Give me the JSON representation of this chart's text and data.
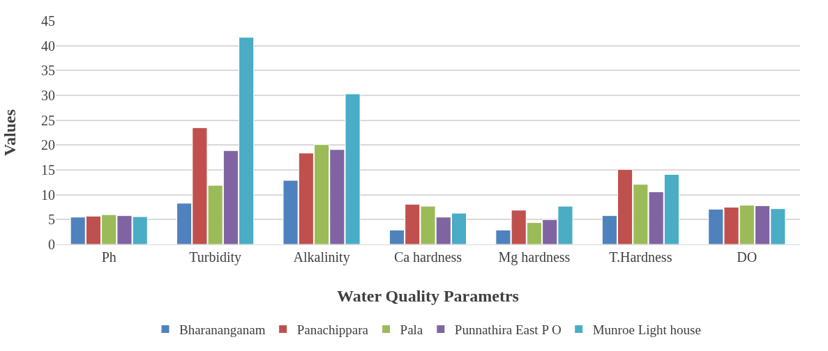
{
  "chart_data": {
    "type": "bar",
    "xlabel": "Water Quality Parametrs",
    "ylabel": "Values",
    "categories": [
      "Ph",
      "Turbidity",
      "Alkalinity",
      "Ca hardness",
      "Mg hardness",
      "T.Hardness",
      "DO"
    ],
    "series": [
      {
        "name": "Bharananganam",
        "color": "#4f81bd",
        "values": [
          5.5,
          8.3,
          12.9,
          2.9,
          2.9,
          5.8,
          7.1
        ]
      },
      {
        "name": "Panachippara",
        "color": "#c0504d",
        "values": [
          5.7,
          23.5,
          18.4,
          8.1,
          6.9,
          15.1,
          7.5
        ]
      },
      {
        "name": "Pala",
        "color": "#9bbb59",
        "values": [
          6.0,
          11.9,
          20.1,
          7.7,
          4.4,
          12.1,
          7.9
        ]
      },
      {
        "name": "Punnathira East P O",
        "color": "#8064a2",
        "values": [
          5.8,
          18.9,
          19.1,
          5.5,
          5.0,
          10.6,
          7.8
        ]
      },
      {
        "name": "Munroe Light house",
        "color": "#4bacc6",
        "values": [
          5.6,
          41.7,
          30.3,
          6.3,
          7.7,
          14.1,
          7.2
        ]
      }
    ],
    "ylim": [
      0,
      45
    ],
    "yticks": [
      0,
      5,
      10,
      15,
      20,
      25,
      30,
      35,
      40,
      45
    ],
    "grid": "y",
    "legend": "bottom"
  }
}
